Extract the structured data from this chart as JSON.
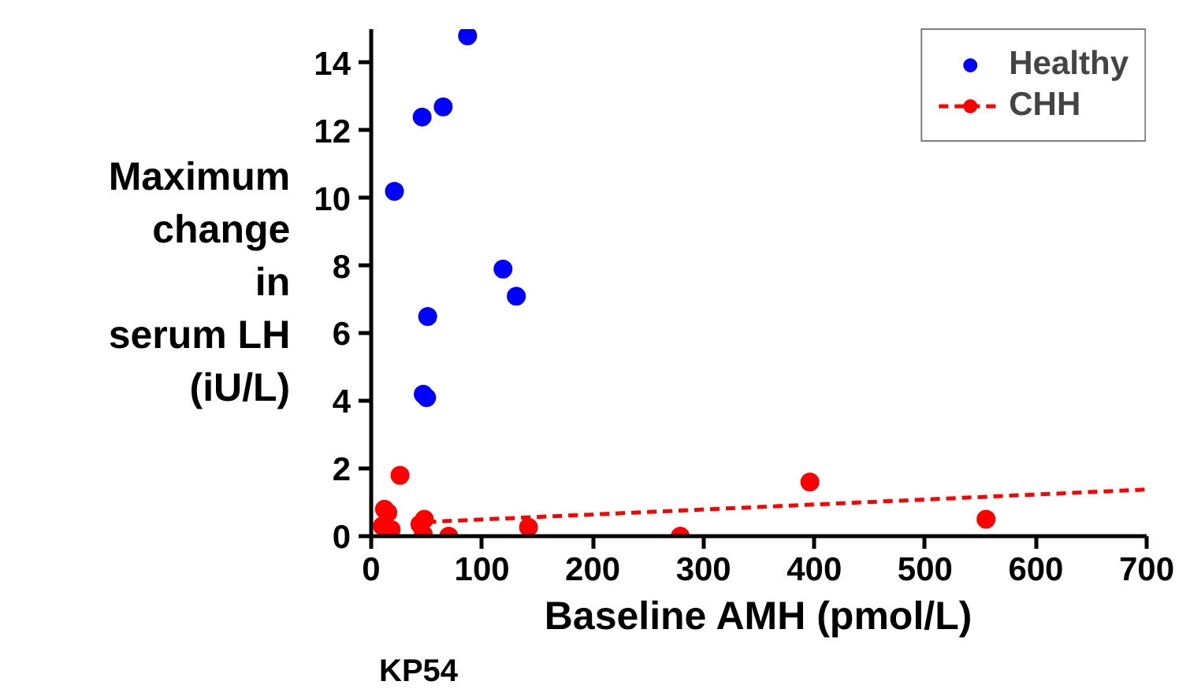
{
  "chart_data": {
    "type": "scatter",
    "xlabel": "Baseline AMH (pmol/L)",
    "ylabel": "Maximum\nchange\nin\nserum LH\n(iU/L)",
    "annotations": [
      "KP54"
    ],
    "xlim": [
      0,
      700
    ],
    "xticks": [
      0,
      100,
      200,
      300,
      400,
      500,
      600,
      700
    ],
    "ylim": [
      0,
      15
    ],
    "yticks": [
      0,
      2,
      4,
      6,
      8,
      10,
      12,
      14
    ],
    "grid": false,
    "legend": "top right",
    "marker": "circle",
    "series": [
      {
        "name": "Healthy",
        "color": "#0000ff",
        "x": [
          87,
          65,
          46,
          21,
          119,
          131,
          51,
          50,
          47
        ],
        "values": [
          14.8,
          12.7,
          12.4,
          10.2,
          7.9,
          7.1,
          6.5,
          4.1,
          4.2
        ]
      },
      {
        "name": "CHH",
        "color": "#ff0000",
        "x": [
          26,
          12,
          15,
          10,
          18,
          48,
          44,
          47,
          70,
          142,
          279,
          396,
          555
        ],
        "values": [
          1.8,
          0.8,
          0.7,
          0.3,
          0.2,
          0.5,
          0.35,
          0.05,
          0.0,
          0.26,
          0.0,
          1.6,
          0.5
        ]
      },
      {
        "type": "line",
        "marker": "none",
        "line_style": "dashed",
        "color": "#ff0000",
        "x": [
          50,
          700
        ],
        "values": [
          0.42,
          1.38
        ]
      }
    ]
  }
}
